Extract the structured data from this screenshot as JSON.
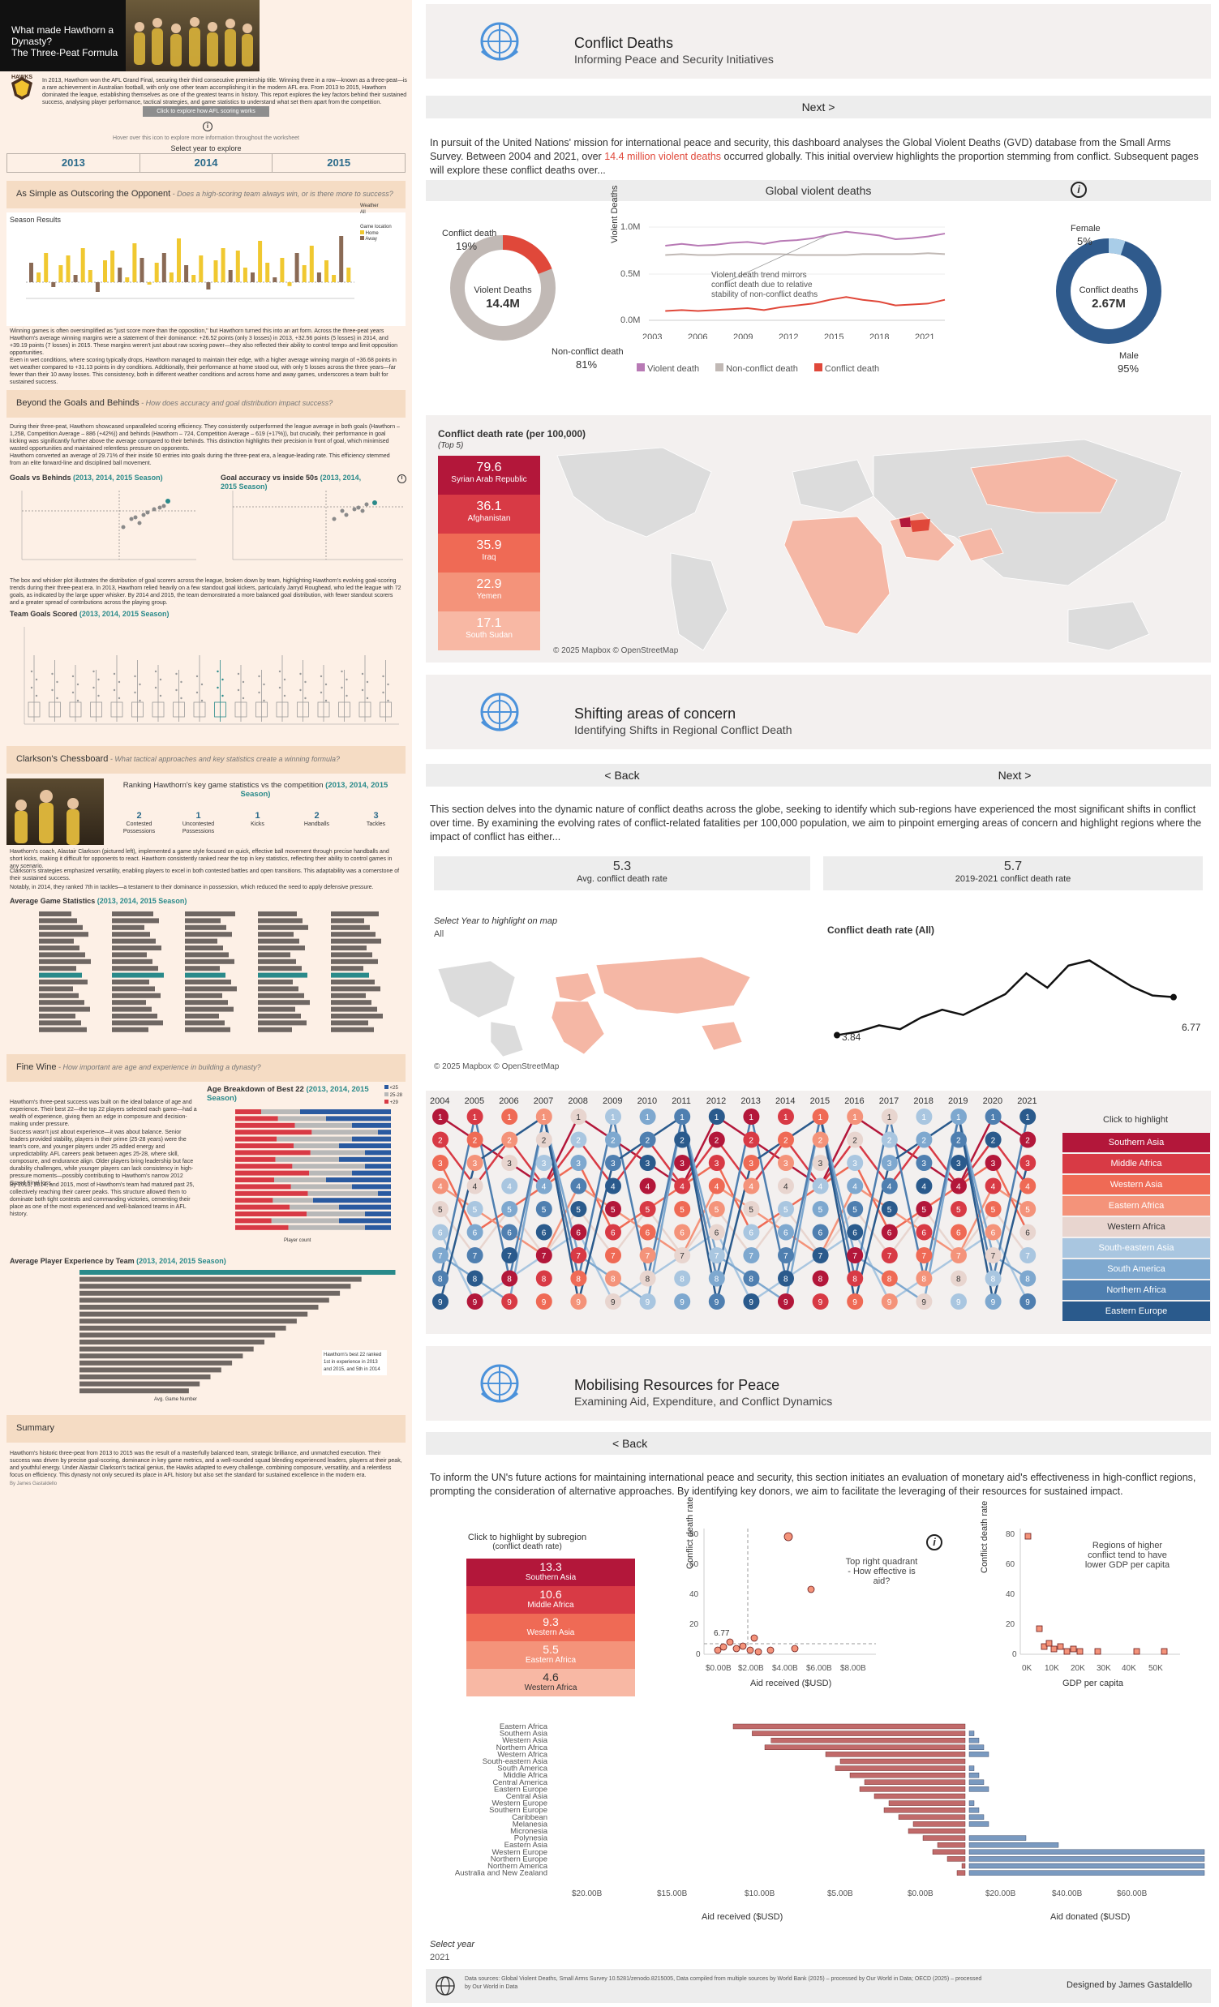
{
  "left": {
    "hero": {
      "title_line1": "What made Hawthorn a",
      "title_line2": "Dynasty?",
      "title_line3": "The Three-Peat Formula"
    },
    "logo_text": "HAWKS",
    "intro": "In 2013, Hawthorn won the AFL Grand Final, securing their third consecutive premiership title. Winning three in a row—known as a three-peat—is a rare achievement in Australian football, with only one other team accomplishing it in the modern AFL era. From 2013 to 2015, Hawthorn dominated the league, establishing themselves as one of the greatest teams in history. This report explores the key factors behind their sustained success, analysing player performance, tactical strategies, and game statistics to understand what set them apart from the competition.",
    "afl_button": "Click to explore how AFL scoring works",
    "hover_note": "Hover over this icon to explore more information throughout the worksheet",
    "select_year": "Select year to explore",
    "years": [
      "2013",
      "2014",
      "2015"
    ],
    "sec1": {
      "title": "As Simple as Outscoring the Opponent",
      "q": " - Does a high-scoring team always win, or is there more to success?"
    },
    "season_results": "Season Results",
    "weather": "Weather",
    "weather_val": "All",
    "game_location": "Game location",
    "home": "Home",
    "away": "Away",
    "para1": "Winning games is often oversimplified as \"just score more than the opposition,\" but Hawthorn turned this into an art form. Across the three-peat years Hawthorn's average winning margins were a statement of their dominance: +26.52 points (only 3 losses) in 2013, +32.56 points (5 losses) in 2014, and +39.19 points (7 losses) in 2015. These margins weren't just about raw scoring power—they also reflected their ability to control tempo and limit opposition opportunities.",
    "para2": "Even in wet conditions, where scoring typically drops, Hawthorn managed to maintain their edge, with a higher average winning margin of +36.68 points in wet weather compared to +31.13 points in dry conditions. Additionally, their performance at home stood out, with only 5 losses across the three years—far fewer than their 10 away losses. This consistency, both in different weather conditions and across home and away games, underscores a team built for sustained success.",
    "sec2": {
      "title": "Beyond the Goals and Behinds",
      "q": " - How does accuracy and goal distribution impact success?"
    },
    "para3": "During their three-peat, Hawthorn showcased unparalleled scoring efficiency. They consistently outperformed the league average in both goals (Hawthorn – 1,258, Competition Average – 886 (+42%)) and behinds (Hawthorn – 724, Competition Average – 619 (+17%)), but crucially, their performance in goal kicking was significantly further above the average compared to their behinds. This distinction highlights their precision in front of goal, which minimised wasted opportunities and maintained relentless pressure on opponents.",
    "para4": "Hawthorn converted an average of 29.71% of their inside 50 entries into goals during the three-peat era, a league-leading rate. This efficiency stemmed from an elite forward-line and disciplined ball movement.",
    "goals_vs_behinds": "Goals vs Behinds",
    "gvb_years": "(2013, 2014, 2015 Season)",
    "goal_acc": "Goal accuracy vs inside 50s",
    "goal_acc_years": "(2013, 2014, 2015 Season)",
    "para5": "The box and whisker plot illustrates the distribution of goal scorers across the league, broken down by team, highlighting Hawthorn's evolving goal-scoring trends during their three-peat era. In 2013, Hawthorn relied heavily on a few standout goal kickers, particularly Jarryd Roughead, who led the league with 72 goals, as indicated by the large upper whisker. By 2014 and 2015, the team demonstrated a more balanced goal distribution, with fewer standout scorers and a greater spread of contributions across the playing group.",
    "team_goals": "Team Goals Scored",
    "team_goals_years": "(2013, 2014, 2015 Season)",
    "sec3": {
      "title": "Clarkson's Chessboard",
      "q": " - What tactical approaches and key statistics create a winning formula?"
    },
    "rank_title": "Ranking Hawthorn's key game statistics vs the competition",
    "rank_years": "(2013, 2014, 2015 Season)",
    "ranks": [
      {
        "v": "2",
        "l": "Contested Possessions"
      },
      {
        "v": "1",
        "l": "Uncontested Possessions"
      },
      {
        "v": "1",
        "l": "Kicks"
      },
      {
        "v": "2",
        "l": "Handballs"
      },
      {
        "v": "3",
        "l": "Tackles"
      }
    ],
    "para6": "Hawthorn's coach, Alastair Clarkson (pictured left), implemented a game style focused on quick, effective ball movement through precise handballs and short kicks, making it difficult for opponents to react. Hawthorn consistently ranked near the top in key statistics, reflecting their ability to control games in any scenario.",
    "para7": "Clarkson's strategies emphasized versatility, enabling players to excel in both contested battles and open transitions. This adaptability was a cornerstone of their sustained success.",
    "para8": "Notably, in 2014, they ranked 7th in tackles—a testament to their dominance in possession, which reduced the need to apply defensive pressure.",
    "avg_game": "Average Game Statistics",
    "avg_game_years": "(2013, 2014, 2015 Season)",
    "sec4": {
      "title": "Fine Wine",
      "q": " - How important are age and experience in building a dynasty?"
    },
    "age_title": "Age Breakdown of Best 22",
    "age_years": "(2013, 2014, 2015 Season)",
    "para9": "Hawthorn's three-peat success was built on the ideal balance of age and experience. Their best 22—the top 22 players selected each game—had a wealth of experience, giving them an edge in composure and decision-making under pressure.",
    "para10": "Success wasn't just about experience—it was about balance. Senior leaders provided stability, players in their prime (25-28 years) were the team's core, and younger players under 25 added energy and unpredictability. AFL careers peak between ages 25-28, where skill, composure, and endurance align. Older players bring leadership but face durability challenges, while younger players can lack consistency in high-pressure moments—possibly contributing to Hawthorn's narrow 2012 Grand Final loss.",
    "para11": "By 2013, 2014, and 2015, most of Hawthorn's team had matured past 25, collectively reaching their career peaks. This structure allowed them to dominate both tight contests and commanding victories, cementing their place as one of the most experienced and well-balanced teams in AFL history.",
    "avg_exp": "Average Player Experience by Team",
    "avg_exp_years": "(2013, 2014, 2015 Season)",
    "exp_note": "Hawthorn's best 22 ranked 1st in experience in 2013 and 2015, and 5th in 2014",
    "sec5": {
      "title": "Summary"
    },
    "para12": "Hawthorn's historic three-peat from 2013 to 2015 was the result of a masterfully balanced team, strategic brilliance, and unmatched execution. Their success was driven by precise goal-scoring, dominance in key game metrics, and a well-rounded squad blending experienced leaders, players at their peak, and youthful energy. Under Alastair Clarkson's tactical genius, the Hawks adapted to every challenge, combining composure, versatility, and a relentless focus on efficiency. This dynasty not only secured its place in AFL history but also set the standard for sustained excellence in the modern era.",
    "footer": "By James Gastaldello",
    "teams": [
      "Adelaide",
      "Brisbane Lions",
      "Carlton",
      "Collingwood",
      "Essendon",
      "Fremantle",
      "Geelong",
      "Gold Coast",
      "Greater Western Sydney",
      "Hawthorn",
      "Melbourne",
      "North Melbourne",
      "Port Adelaide",
      "Richmond",
      "St Kilda",
      "Sydney",
      "West Coast",
      "Western Bulldogs"
    ],
    "avg_cols": [
      "Avg. Contested Possessions",
      "Avg. Uncontested Possessions",
      "Avg. Kicks",
      "Avg. Handballs",
      "Avg. Tackles"
    ],
    "age_legend": [
      "<25",
      "25-28",
      "+29"
    ],
    "age_axis": "Player count",
    "exp_axis": "Avg. Game Number",
    "behinds": "Behinds",
    "goals": "Goals",
    "inside50": "Inside 50s",
    "goal_conv": "Goal Conversion (%)",
    "colors": {
      "accent": "#2a8a8a",
      "bar": "#f5dcc4"
    }
  },
  "right": {
    "p1": {
      "title": "Conflict Deaths",
      "subtitle": "Informing Peace and Security Initiatives",
      "next": "Next >",
      "intro_a": "In pursuit of the United Nations' mission for international peace and security, this dashboard analyses the Global Violent Deaths (GVD) database from the Small Arms Survey. Between 2004 and 2021, over ",
      "intro_red": "14.4 million violent deaths",
      "intro_b": " occurred globally. This initial overview highlights the proportion stemming from conflict. Subsequent pages will explore these conflict deaths over...",
      "gvd_title": "Global violent deaths",
      "donut": {
        "center_label": "Violent Deaths",
        "center_value": "14.4M",
        "conflict_label": "Conflict death",
        "conflict_pct": "19%",
        "nonconflict_label": "Non-conflict death",
        "nonconflict_pct": "81%"
      },
      "gender": {
        "female": "Female",
        "female_pct": "5%",
        "male": "Male",
        "male_pct": "95%",
        "center_label": "Conflict deaths",
        "center_value": "2.67M"
      },
      "line_note": "Violent death trend mirrors conflict death due to relative stability of non-conflict deaths",
      "line_ylabel": "Violent Deaths",
      "line_legend": [
        "Violent death",
        "Non-conflict death",
        "Conflict death"
      ],
      "rate_title": "Conflict death rate (per 100,000)",
      "rate_sub": "(Top 5)",
      "top5": [
        {
          "v": "79.6",
          "n": "Syrian Arab Republic",
          "c": "#b3173a"
        },
        {
          "v": "36.1",
          "n": "Afghanistan",
          "c": "#d83a45"
        },
        {
          "v": "35.9",
          "n": "Iraq",
          "c": "#ef6a55"
        },
        {
          "v": "22.9",
          "n": "Yemen",
          "c": "#f4937a"
        },
        {
          "v": "17.1",
          "n": "South Sudan",
          "c": "#f8b8a4"
        }
      ],
      "map_credit": "© 2025 Mapbox © OpenStreetMap"
    },
    "p2": {
      "title": "Shifting areas of concern",
      "subtitle": "Identifying Shifts in Regional Conflict Death",
      "back": "< Back",
      "next": "Next >",
      "intro": "This section delves into the dynamic nature of conflict deaths across the globe, seeking to identify which sub-regions have experienced the most significant shifts in conflict over time. By examining the evolving rates of conflict-related fatalities per 100,000 population, we aim to pinpoint emerging areas of concern and highlight regions where the impact of conflict has either...",
      "kpi1_val": "5.3",
      "kpi1_label": "Avg. conflict death rate",
      "kpi2_val": "5.7",
      "kpi2_label": "2019-2021 conflict death rate",
      "select_year": "Select Year  to highlight on map",
      "select_val": "All",
      "rate_all": "Conflict death rate (All)",
      "start_val": "3.84",
      "end_val": "6.77",
      "map_credit": "© 2025 Mapbox © OpenStreetMap",
      "click_highlight": "Click to highlight",
      "regions": [
        {
          "n": "Southern Asia",
          "c": "#b3173a"
        },
        {
          "n": "Middle Africa",
          "c": "#d83a45"
        },
        {
          "n": "Western Asia",
          "c": "#ef6a55"
        },
        {
          "n": "Eastern Africa",
          "c": "#f4937a"
        },
        {
          "n": "Western Africa",
          "c": "#e8d5cf"
        },
        {
          "n": "South-eastern Asia",
          "c": "#a9c6e0"
        },
        {
          "n": "South America",
          "c": "#7ea8cf"
        },
        {
          "n": "Northern Africa",
          "c": "#4f7fb0"
        },
        {
          "n": "Eastern Europe",
          "c": "#2a5a8c"
        }
      ]
    },
    "p3": {
      "title": "Mobilising Resources for Peace",
      "subtitle": "Examining Aid, Expenditure, and Conflict Dynamics",
      "back": "< Back",
      "intro": "To inform the UN's future actions for maintaining international peace and security, this section initiates an evaluation of monetary aid's effectiveness in high-conflict regions, prompting the consideration of alternative approaches. By identifying key donors, we aim to facilitate the leveraging of their resources for sustained impact.",
      "click_title": "Click to highlight by subregion",
      "click_sub": "(conflict death rate)",
      "subregions": [
        {
          "v": "13.3",
          "n": "Southern Asia",
          "c": "#b3173a"
        },
        {
          "v": "10.6",
          "n": "Middle Africa",
          "c": "#d83a45"
        },
        {
          "v": "9.3",
          "n": "Western Asia",
          "c": "#ef6a55"
        },
        {
          "v": "5.5",
          "n": "Eastern Africa",
          "c": "#f4937a"
        },
        {
          "v": "4.6",
          "n": "Western Africa",
          "c": "#f8b8a4"
        }
      ],
      "scatter1_note": "Top right quadrant - How effective is aid?",
      "scatter1_x": "Aid received ($USD)",
      "scatter1_y": "Conflict death rate",
      "avg_line": "6.77",
      "scatter2_note": "Regions of higher conflict tend to have lower GDP per capita",
      "scatter2_x": "GDP per capita",
      "scatter2_y": "Conflict death rate",
      "butterfly_regions": [
        "Eastern Africa",
        "Southern Asia",
        "Western Asia",
        "Northern Africa",
        "Western Africa",
        "South-eastern Asia",
        "South America",
        "Middle Africa",
        "Central America",
        "Eastern Europe",
        "Central Asia",
        "Western Europe",
        "Southern Europe",
        "Caribbean",
        "Melanesia",
        "Micronesia",
        "Polynesia",
        "Eastern Asia",
        "Western Europe",
        "Northern Europe",
        "Northern America",
        "Australia and New Zealand"
      ],
      "aid_received_label": "Aid received ($USD)",
      "aid_donated_label": "Aid donated ($USD)",
      "select_year": "Select year",
      "select_val": "2021",
      "sources": "Data sources: Global Violent Deaths, Small Arms Survey 10.5281/zenodo.8215005, Data compiled from multiple sources by World Bank (2025) – processed by Our World in Data; OECD (2025) – processed by Our World in Data",
      "designed": "Designed by James Gastaldello"
    }
  }
}
